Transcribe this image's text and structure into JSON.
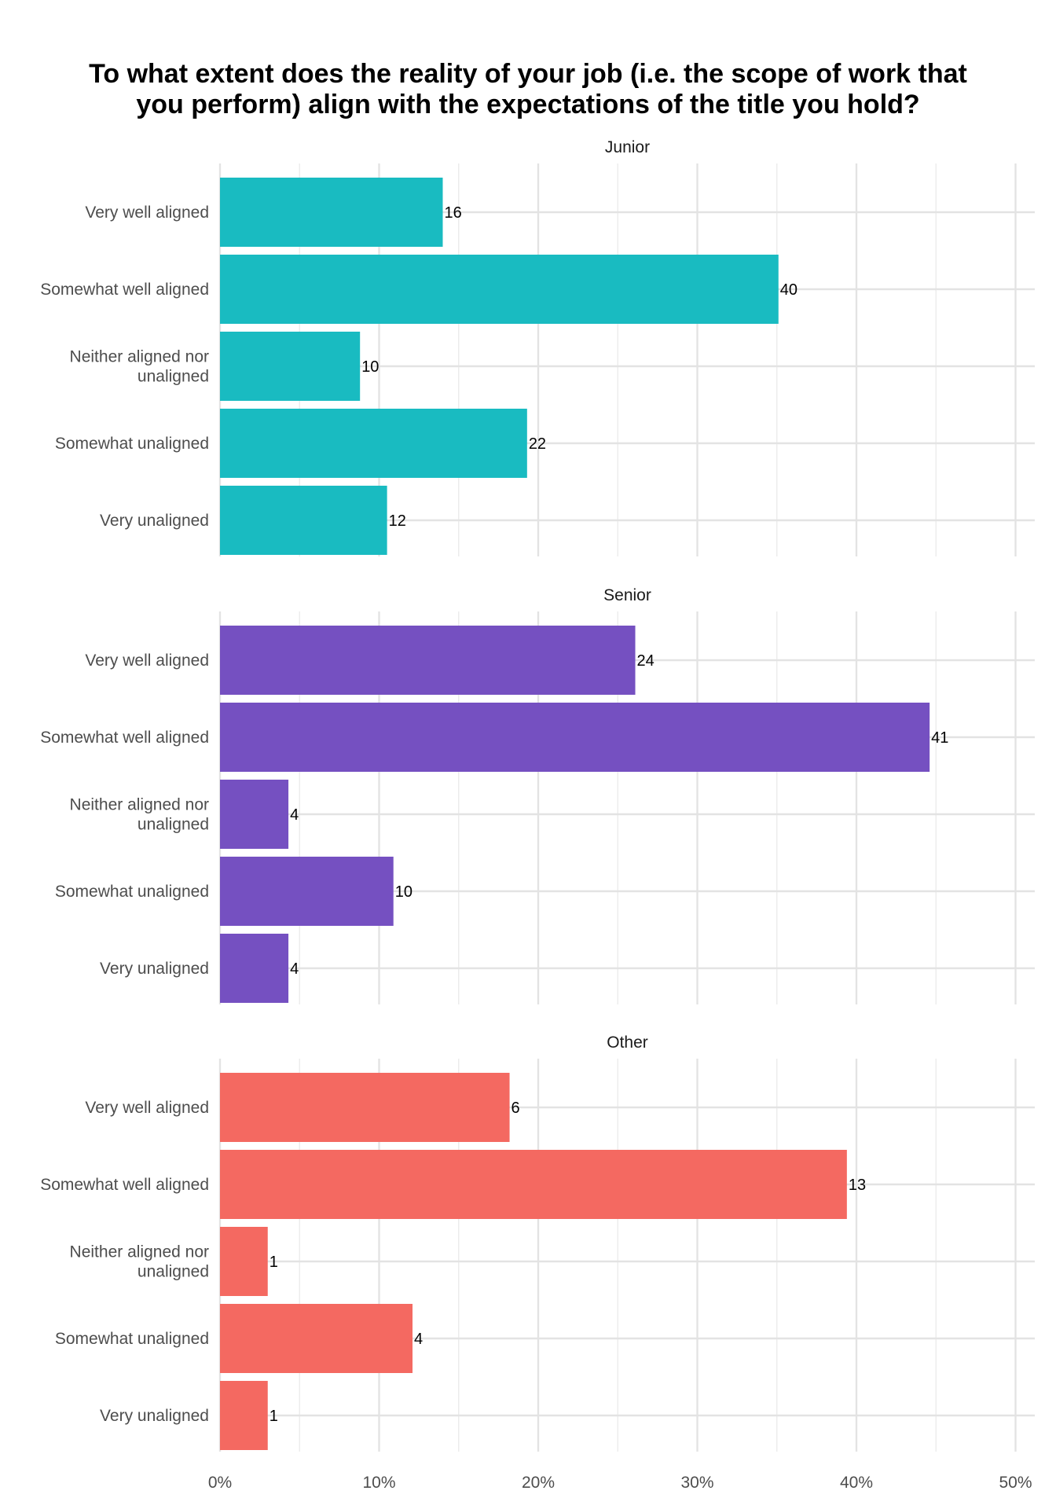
{
  "chart_data": {
    "type": "bar",
    "orientation": "horizontal",
    "title_lines": [
      "To what extent does the reality of your job (i.e. the scope of work that",
      "you perform) align with the expectations of the title you hold?"
    ],
    "xlabel": "",
    "ylabel": "",
    "x_unit": "percent",
    "xlim": [
      0,
      50
    ],
    "x_ticks": [
      "0%",
      "10%",
      "20%",
      "30%",
      "40%",
      "50%"
    ],
    "x_tick_values": [
      0,
      10,
      20,
      30,
      40,
      50
    ],
    "grid": true,
    "legend": "none",
    "categories": [
      "Very well aligned",
      "Somewhat well aligned",
      "Neither aligned nor unaligned",
      "Somewhat unaligned",
      "Very unaligned"
    ],
    "category_label_lines": [
      [
        "Very well aligned"
      ],
      [
        "Somewhat well aligned"
      ],
      [
        "Neither aligned nor",
        "unaligned"
      ],
      [
        "Somewhat unaligned"
      ],
      [
        "Very unaligned"
      ]
    ],
    "facets": [
      {
        "name": "Junior",
        "color": "#19BBC1",
        "counts": [
          16,
          40,
          10,
          22,
          12
        ],
        "percents": [
          14.0,
          35.1,
          8.8,
          19.3,
          10.5
        ]
      },
      {
        "name": "Senior",
        "color": "#7550C1",
        "counts": [
          24,
          41,
          4,
          10,
          4
        ],
        "percents": [
          26.1,
          44.6,
          4.3,
          10.9,
          4.3
        ]
      },
      {
        "name": "Other",
        "color": "#F46961",
        "counts": [
          6,
          13,
          1,
          4,
          1
        ],
        "percents": [
          18.2,
          39.4,
          3.0,
          12.1,
          3.0
        ]
      }
    ]
  }
}
